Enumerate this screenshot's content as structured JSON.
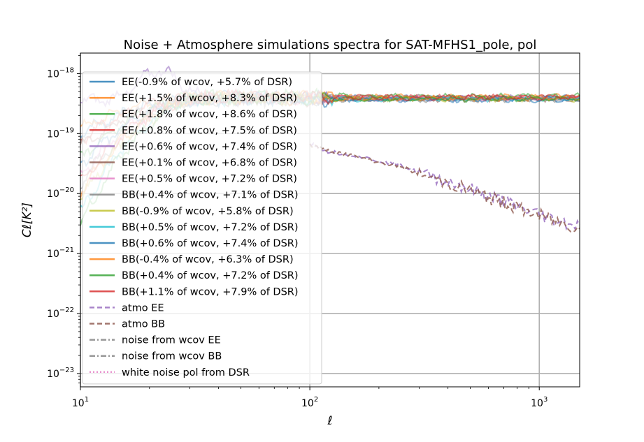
{
  "chart_data": {
    "type": "line",
    "title": "Noise + Atmosphere simulations spectra for SAT-MFHS1_pole, pol",
    "xlabel": "ℓ",
    "ylabel": "Cℓ[K²]",
    "xscale": "log",
    "yscale": "log",
    "xlim": [
      10,
      1500
    ],
    "ylim": [
      6e-24,
      2.2e-18
    ],
    "grid": true,
    "legend_position": "upper-left",
    "x_ticks": [
      {
        "value": 10,
        "mantissa": "10",
        "exp": "1"
      },
      {
        "value": 100,
        "mantissa": "10",
        "exp": "2"
      },
      {
        "value": 1000,
        "mantissa": "10",
        "exp": "3"
      }
    ],
    "y_ticks": [
      {
        "value": 1e-23,
        "mantissa": "10",
        "exp": "−23"
      },
      {
        "value": 1e-22,
        "mantissa": "10",
        "exp": "−22"
      },
      {
        "value": 1e-21,
        "mantissa": "10",
        "exp": "−21"
      },
      {
        "value": 1e-20,
        "mantissa": "10",
        "exp": "−20"
      },
      {
        "value": 1e-19,
        "mantissa": "10",
        "exp": "−19"
      },
      {
        "value": 1e-18,
        "mantissa": "10",
        "exp": "−18"
      }
    ],
    "series": [
      {
        "name": "EE(-0.9% of wcov, +5.7% of DSR)",
        "color": "#1f77b4",
        "style": "solid",
        "level": 3.9e-19,
        "start": 1e-19
      },
      {
        "name": "EE(+1.5% of wcov, +8.3% of DSR)",
        "color": "#ff7f0e",
        "style": "solid",
        "level": 4.1e-19,
        "start": 1.2e-19
      },
      {
        "name": "EE(+1.8% of wcov, +8.6% of DSR)",
        "color": "#2ca02c",
        "style": "solid",
        "level": 4.2e-19,
        "start": 4e-20
      },
      {
        "name": "EE(+0.8% of wcov, +7.5% of DSR)",
        "color": "#d62728",
        "style": "solid",
        "level": 4e-19,
        "start": 8e-20
      },
      {
        "name": "EE(+0.6% of wcov, +7.4% of DSR)",
        "color": "#9467bd",
        "style": "solid",
        "level": 3.9e-19,
        "start": 3.5e-19,
        "bump": 1.15e-18
      },
      {
        "name": "EE(+0.1% of wcov, +6.8% of DSR)",
        "color": "#8c564b",
        "style": "solid",
        "level": 3.8e-19,
        "start": 6e-20
      },
      {
        "name": "EE(+0.5% of wcov, +7.2% of DSR)",
        "color": "#e377c2",
        "style": "solid",
        "level": 3.9e-19,
        "start": 2e-20
      },
      {
        "name": "BB(+0.4% of wcov, +7.1% of DSR)",
        "color": "#7f7f7f",
        "style": "solid",
        "level": 3.7e-19,
        "start": 1.5e-20
      },
      {
        "name": "BB(-0.9% of wcov, +5.8% of DSR)",
        "color": "#bcbd22",
        "style": "solid",
        "level": 3.8e-19,
        "start": 8e-21
      },
      {
        "name": "BB(+0.5% of wcov, +7.2% of DSR)",
        "color": "#17becf",
        "style": "solid",
        "level": 3.8e-19,
        "start": 5e-21
      },
      {
        "name": "BB(+0.6% of wcov, +7.4% of DSR)",
        "color": "#1f77b4",
        "style": "solid",
        "level": 3.7e-19,
        "start": 3e-20
      },
      {
        "name": "BB(-0.4% of wcov, +6.3% of DSR)",
        "color": "#ff7f0e",
        "style": "solid",
        "level": 3.9e-19,
        "start": 1e-20
      },
      {
        "name": "BB(+0.4% of wcov, +7.2% of DSR)",
        "color": "#2ca02c",
        "style": "solid",
        "level": 3.8e-19,
        "start": 3e-21
      },
      {
        "name": "BB(+1.1% of wcov, +7.9% of DSR)",
        "color": "#d62728",
        "style": "solid",
        "level": 4e-19,
        "start": 1.5e-20
      },
      {
        "name": "atmo EE",
        "color": "#9467bd",
        "style": "dashed",
        "points": [
          [
            100,
            7e-20
          ],
          [
            120,
            5e-20
          ],
          [
            150,
            4.5e-20
          ],
          [
            200,
            3.5e-20
          ],
          [
            250,
            3e-20
          ],
          [
            300,
            2.2e-20
          ],
          [
            400,
            1.6e-20
          ],
          [
            500,
            1.2e-20
          ],
          [
            600,
            9e-21
          ],
          [
            700,
            7.5e-21
          ],
          [
            800,
            6e-21
          ],
          [
            1000,
            4.5e-21
          ],
          [
            1200,
            3.5e-21
          ],
          [
            1500,
            3e-21
          ]
        ]
      },
      {
        "name": "atmo BB",
        "color": "#8c564b",
        "style": "dashed",
        "points": [
          [
            100,
            6.5e-20
          ],
          [
            120,
            5.2e-20
          ],
          [
            150,
            4.4e-20
          ],
          [
            200,
            3.3e-20
          ],
          [
            250,
            2.8e-20
          ],
          [
            300,
            2.1e-20
          ],
          [
            400,
            1.5e-20
          ],
          [
            500,
            1.15e-20
          ],
          [
            600,
            8.5e-21
          ],
          [
            700,
            7e-21
          ],
          [
            800,
            5.8e-21
          ],
          [
            1000,
            4.3e-21
          ],
          [
            1200,
            3.4e-21
          ],
          [
            1500,
            2.6e-21
          ]
        ]
      },
      {
        "name": "noise from wcov EE",
        "color": "#7f7f7f",
        "style": "dashdot",
        "points": []
      },
      {
        "name": "noise from wcov BB",
        "color": "#7f7f7f",
        "style": "dashdot",
        "points": []
      },
      {
        "name": "white noise pol from DSR",
        "color": "#e377c2",
        "style": "dotted",
        "points": []
      }
    ]
  }
}
